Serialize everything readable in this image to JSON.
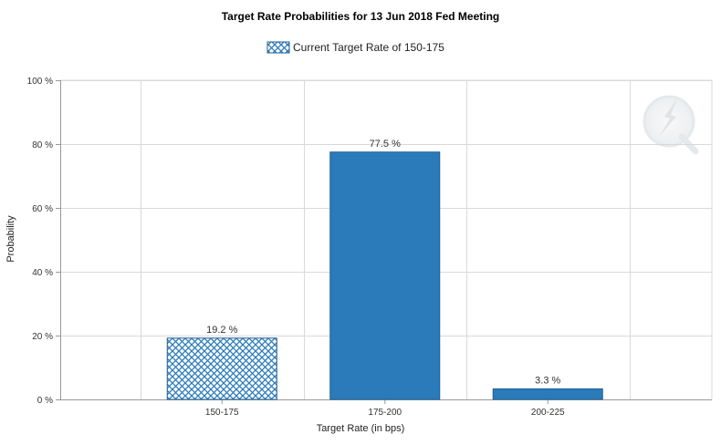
{
  "chart_data": {
    "type": "bar",
    "title": "Target Rate Probabilities for 13 Jun 2018 Fed Meeting",
    "legend": {
      "label": "Current Target Rate of 150-175",
      "placement": "top-center",
      "pattern": "crosshatch"
    },
    "categories": [
      "150-175",
      "175-200",
      "200-225"
    ],
    "values": [
      19.2,
      77.5,
      3.3
    ],
    "data_labels": [
      "19.2 %",
      "77.5 %",
      "3.3 %"
    ],
    "highlight_index": 0,
    "xlabel": "Target Rate (in bps)",
    "ylabel": "Probability",
    "ylim": [
      0,
      100
    ],
    "y_ticks": [
      0,
      20,
      40,
      60,
      80,
      100
    ],
    "y_tick_labels": [
      "0 %",
      "20 %",
      "40 %",
      "60 %",
      "80 %",
      "100 %"
    ],
    "grid": true,
    "colors": {
      "bar": "#2b7bba",
      "bar_stroke": "#1f5f94",
      "hatch_line": "#2b7bba",
      "hatch_background": "#ffffff",
      "grid": "#d9d9d9",
      "axis": "#999999"
    }
  }
}
